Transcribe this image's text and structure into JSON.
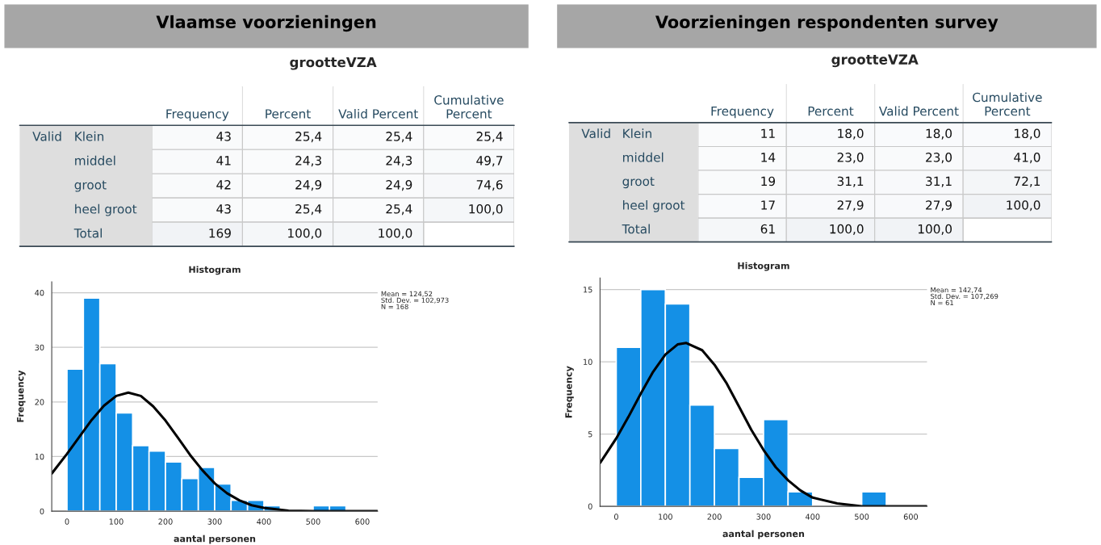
{
  "chart_data": [
    {
      "type": "heatmap",
      "title": "Vlaamse voorzieningen",
      "subtitle": "grootteVZA",
      "annotations": [
        "Valid"
      ],
      "categories": [
        "Frequency",
        "Percent",
        "Valid Percent",
        "Cumulative\nPercent"
      ],
      "y_categories": [
        "Klein",
        "middel",
        "groot",
        "heel groot",
        "Total"
      ],
      "cells": [
        [
          43,
          25.4,
          25.4,
          25.4
        ],
        [
          41,
          24.3,
          24.3,
          49.7
        ],
        [
          42,
          24.9,
          24.9,
          74.6
        ],
        [
          43,
          25.4,
          25.4,
          100.0
        ],
        [
          169,
          100.0,
          100.0,
          null
        ]
      ],
      "cell_labels": [
        [
          "43",
          "25,4",
          "25,4",
          "25,4"
        ],
        [
          "41",
          "24,3",
          "24,3",
          "49,7"
        ],
        [
          "42",
          "24,9",
          "24,9",
          "74,6"
        ],
        [
          "43",
          "25,4",
          "25,4",
          "100,0"
        ],
        [
          "169",
          "100,0",
          "100,0",
          null
        ]
      ]
    },
    {
      "type": "heatmap",
      "title": "Voorzieningen respondenten survey",
      "subtitle": "grootteVZA",
      "annotations": [
        "Valid"
      ],
      "categories": [
        "Frequency",
        "Percent",
        "Valid Percent",
        "Cumulative\nPercent"
      ],
      "y_categories": [
        "Klein",
        "middel",
        "groot",
        "heel groot",
        "Total"
      ],
      "cells": [
        [
          11,
          18.0,
          18.0,
          18.0
        ],
        [
          14,
          23.0,
          23.0,
          41.0
        ],
        [
          19,
          31.1,
          31.1,
          72.1
        ],
        [
          17,
          27.9,
          27.9,
          100.0
        ],
        [
          61,
          100.0,
          100.0,
          null
        ]
      ],
      "cell_labels": [
        [
          "11",
          "18,0",
          "18,0",
          "18,0"
        ],
        [
          "14",
          "23,0",
          "23,0",
          "41,0"
        ],
        [
          "19",
          "31,1",
          "31,1",
          "72,1"
        ],
        [
          "17",
          "27,9",
          "27,9",
          "100,0"
        ],
        [
          "61",
          "100,0",
          "100,0",
          null
        ]
      ]
    },
    {
      "type": "histogram",
      "title": "Histogram",
      "xlabel": "aantal personen",
      "ylabel": "Frequency",
      "color": "#1490e6",
      "bins": [
        0,
        33.3,
        66.7,
        100,
        133.3,
        166.7,
        200,
        233.3,
        266.7,
        300,
        333.3,
        366.7,
        400,
        433.3,
        466.7,
        500,
        533.3,
        566.7
      ],
      "values": [
        26,
        39,
        27,
        18,
        12,
        11,
        9,
        6,
        8,
        5,
        2,
        2,
        1,
        0,
        0,
        1,
        1
      ],
      "series": [
        {
          "type": "line",
          "color": "#000000",
          "x": [
            -31,
            0,
            25,
            50,
            75,
            100,
            124.5,
            150,
            175,
            200,
            225,
            250,
            275,
            300,
            325,
            350,
            375,
            400,
            450,
            500,
            631
          ],
          "values": [
            6.9,
            10.5,
            13.6,
            16.7,
            19.3,
            21.1,
            21.7,
            21.1,
            19.2,
            16.6,
            13.5,
            10.3,
            7.5,
            5.1,
            3.3,
            2.0,
            1.1,
            0.6,
            0.1,
            0,
            0
          ]
        }
      ],
      "xlim": [
        -31,
        631
      ],
      "ylim": [
        0,
        42
      ],
      "xticks": [
        0,
        100,
        200,
        300,
        400,
        500,
        600
      ],
      "yticks": [
        0,
        10,
        20,
        30,
        40
      ],
      "grid": "y",
      "annotations": [
        "Mean = 124,52",
        "Std. Dev. = 102,973",
        "N = 168"
      ]
    },
    {
      "type": "histogram",
      "title": "Histogram",
      "xlabel": "aantal personen",
      "ylabel": "Frequency",
      "color": "#1490e6",
      "bins": [
        0,
        50,
        100,
        150,
        200,
        250,
        300,
        350,
        400,
        450,
        500,
        550
      ],
      "values": [
        11,
        15,
        14,
        7,
        4,
        2,
        6,
        1,
        0,
        0,
        1
      ],
      "series": [
        {
          "type": "line",
          "color": "#000000",
          "x": [
            -33,
            0,
            25,
            50,
            75,
            100,
            125,
            142.7,
            175,
            200,
            225,
            250,
            275,
            300,
            325,
            350,
            375,
            400,
            450,
            500,
            633
          ],
          "values": [
            3.0,
            4.7,
            6.2,
            7.8,
            9.3,
            10.5,
            11.2,
            11.3,
            10.8,
            9.8,
            8.5,
            6.9,
            5.3,
            3.9,
            2.7,
            1.8,
            1.1,
            0.6,
            0.2,
            0,
            0
          ]
        }
      ],
      "xlim": [
        -33,
        633
      ],
      "ylim": [
        0,
        15.8
      ],
      "xticks": [
        0,
        100,
        200,
        300,
        400,
        500,
        600
      ],
      "yticks": [
        0,
        5,
        10,
        15
      ],
      "grid": "y",
      "annotations": [
        "Mean = 142,74",
        "Std. Dev. = 107,269",
        "N = 61"
      ]
    }
  ]
}
